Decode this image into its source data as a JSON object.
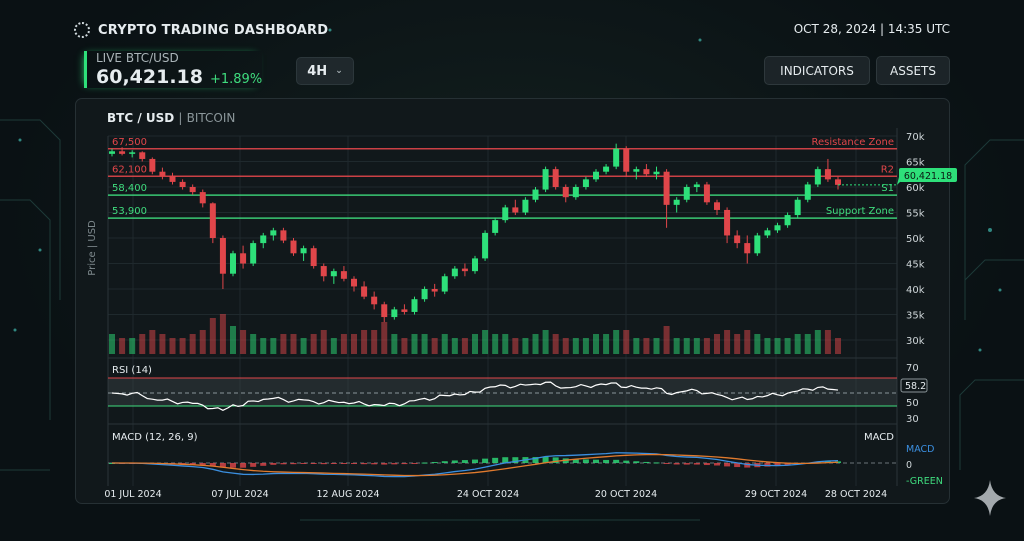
{
  "header": {
    "title": "CRYPTO TRADING DASHBOARD",
    "datetime": "OCT 28, 2024 | 14:35 UTC",
    "logo_icon": "spinner-dots-icon"
  },
  "ticker": {
    "label": "LIVE BTC/USD",
    "price": "60,421.18",
    "change": "+1.89%"
  },
  "timeframe": {
    "value": "4H",
    "icon": "chevron-down-icon"
  },
  "buttons": {
    "indicators": "INDICATORS",
    "assets": "ASSETS"
  },
  "chart": {
    "pair": "BTC / USD",
    "separator": "|",
    "name": "BITCOIN",
    "ylabel": "Price | USD",
    "current_price_tag": "60,421.18"
  },
  "colors": {
    "up": "#2ee07a",
    "down": "#e0464a",
    "resistance": "#e0464a",
    "support": "#3fdc7e",
    "rsi_line": "#ffffff",
    "macd_line": "#3b8fe0",
    "signal_line": "#e07a2e",
    "current_tag": "#2ee07a"
  },
  "chart_data": [
    {
      "type": "candlestick",
      "ylim": [
        30000,
        70000
      ],
      "yticks": [
        "70k",
        "65k",
        "60k",
        "55k",
        "50k",
        "45k",
        "40k",
        "35k",
        "30k"
      ],
      "yticks_values": [
        70000,
        65000,
        60000,
        55000,
        50000,
        45000,
        40000,
        35000,
        30000
      ],
      "xticks": [
        "01 JUL 2024",
        "07 JUL 2024",
        "12 AUG 2024",
        "24 OCT 2024",
        "20 OCT 2024",
        "29 OCT 2024",
        "28 OCT 2024"
      ],
      "levels": [
        {
          "value": 67500,
          "label": "67,500",
          "zone": "Resistance Zone",
          "kind": "resistance"
        },
        {
          "value": 62100,
          "label": "62,100",
          "zone": "R2",
          "kind": "resistance"
        },
        {
          "value": 58400,
          "label": "58,400",
          "zone": "S1",
          "kind": "support"
        },
        {
          "value": 53900,
          "label": "53,900",
          "zone": "Support Zone",
          "kind": "support"
        }
      ],
      "ohlc_k": [
        [
          66.5,
          67.5,
          66,
          67
        ],
        [
          67,
          67.8,
          66.2,
          66.5
        ],
        [
          66.5,
          67.2,
          65.8,
          66.8
        ],
        [
          66.8,
          67,
          65,
          65.5
        ],
        [
          65.5,
          65.8,
          62.5,
          63
        ],
        [
          63,
          63.8,
          61.5,
          62.2
        ],
        [
          62.2,
          62.8,
          60.5,
          61
        ],
        [
          61,
          61.5,
          59.5,
          60
        ],
        [
          60,
          60.5,
          58.5,
          59
        ],
        [
          59,
          59.5,
          56,
          56.8
        ],
        [
          56.8,
          57,
          49,
          50
        ],
        [
          50,
          50.5,
          40,
          43
        ],
        [
          43,
          47.5,
          42.5,
          47
        ],
        [
          47,
          48.5,
          44,
          45
        ],
        [
          45,
          49.5,
          44.5,
          49
        ],
        [
          49,
          51,
          48,
          50.5
        ],
        [
          50.5,
          52,
          49.5,
          51.5
        ],
        [
          51.5,
          52,
          49,
          49.5
        ],
        [
          49.5,
          50,
          46.5,
          47
        ],
        [
          47,
          48.5,
          45.5,
          48
        ],
        [
          48,
          48.5,
          44,
          44.5
        ],
        [
          44.5,
          45,
          41.5,
          42.5
        ],
        [
          42.5,
          44,
          41,
          43.5
        ],
        [
          43.5,
          44.5,
          41.5,
          42
        ],
        [
          42,
          42.5,
          39.5,
          40.5
        ],
        [
          40.5,
          41.5,
          38,
          38.5
        ],
        [
          38.5,
          39.5,
          36,
          37
        ],
        [
          37,
          37.5,
          33.5,
          34.5
        ],
        [
          34.5,
          36.5,
          34,
          36
        ],
        [
          36,
          37,
          35,
          35.5
        ],
        [
          35.5,
          38.5,
          35,
          38
        ],
        [
          38,
          40.5,
          37.5,
          40
        ],
        [
          40,
          41,
          38.5,
          39.5
        ],
        [
          39.5,
          43,
          39,
          42.5
        ],
        [
          42.5,
          44.5,
          42,
          44
        ],
        [
          44,
          45,
          42.5,
          43.5
        ],
        [
          43.5,
          46.5,
          43,
          46
        ],
        [
          46,
          51.5,
          45.5,
          51
        ],
        [
          51,
          54,
          50.5,
          53.5
        ],
        [
          53.5,
          56.5,
          53,
          56
        ],
        [
          56,
          57.5,
          54.5,
          55
        ],
        [
          55,
          58,
          54.5,
          57.5
        ],
        [
          57.5,
          60,
          57,
          59.5
        ],
        [
          59.5,
          64,
          59,
          63.5
        ],
        [
          63.5,
          64,
          59.5,
          60
        ],
        [
          60,
          60.5,
          57,
          58
        ],
        [
          58,
          60.5,
          57.5,
          60
        ],
        [
          60,
          62,
          59.5,
          61.5
        ],
        [
          61.5,
          63.5,
          61,
          63
        ],
        [
          63,
          64.5,
          62.5,
          64
        ],
        [
          64,
          68.5,
          63.5,
          67.5
        ],
        [
          67.5,
          68,
          62,
          63
        ],
        [
          63,
          64,
          61.5,
          63.5
        ],
        [
          63.5,
          64.5,
          62,
          62.5
        ],
        [
          62.5,
          64,
          61.5,
          63
        ],
        [
          63,
          63.5,
          52,
          56.5
        ],
        [
          56.5,
          58,
          55,
          57.5
        ],
        [
          57.5,
          60.5,
          57,
          60
        ],
        [
          60,
          61,
          59,
          60.5
        ],
        [
          60.5,
          61,
          56.5,
          57
        ],
        [
          57,
          57.5,
          54.5,
          55.5
        ],
        [
          55.5,
          56,
          49,
          50.5
        ],
        [
          50.5,
          51.5,
          48,
          49
        ],
        [
          49,
          50.5,
          45,
          47
        ],
        [
          47,
          51,
          46.5,
          50.5
        ],
        [
          50.5,
          52,
          50,
          51.5
        ],
        [
          51.5,
          53,
          51,
          52.5
        ],
        [
          52.5,
          55,
          52,
          54.5
        ],
        [
          54.5,
          58,
          54,
          57.5
        ],
        [
          57.5,
          61,
          57,
          60.5
        ],
        [
          60.5,
          64,
          60,
          63.5
        ],
        [
          63.5,
          65.5,
          61,
          61.5
        ],
        [
          61.5,
          62,
          59.5,
          60.42
        ]
      ],
      "volume": [
        5,
        4,
        4,
        5,
        6,
        5,
        4,
        4,
        5,
        6,
        9,
        10,
        7,
        6,
        5,
        4,
        4,
        5,
        5,
        4,
        5,
        6,
        4,
        5,
        5,
        6,
        6,
        8,
        5,
        4,
        5,
        5,
        4,
        5,
        4,
        4,
        5,
        6,
        5,
        5,
        4,
        4,
        5,
        6,
        5,
        4,
        4,
        4,
        5,
        5,
        6,
        6,
        4,
        4,
        4,
        7,
        4,
        4,
        4,
        4,
        5,
        6,
        5,
        6,
        5,
        4,
        4,
        4,
        5,
        5,
        6,
        6,
        4
      ]
    },
    {
      "type": "line",
      "title": "RSI (14)",
      "yticks": [
        "70",
        "50",
        "30"
      ],
      "current": "58.2",
      "upper": 70,
      "lower": 30
    },
    {
      "type": "line",
      "title": "MACD (12, 26, 9)",
      "corner_label": "MACD",
      "legend": [
        "MACD",
        "-GREEN"
      ],
      "yticks": [
        "0"
      ]
    }
  ]
}
